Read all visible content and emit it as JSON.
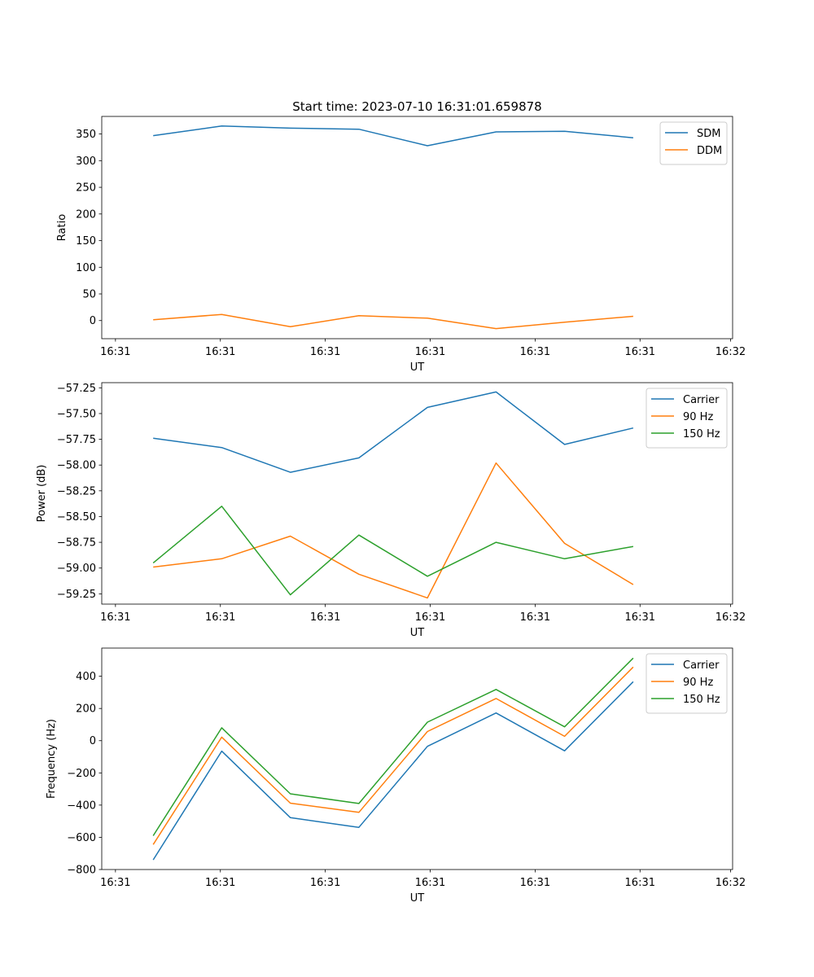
{
  "figure": {
    "title": "Start time: 2023-07-10 16:31:01.659878"
  },
  "chart_data": [
    {
      "type": "line",
      "title": "Start time: 2023-07-10 16:31:01.659878",
      "xlabel": "UT",
      "ylabel": "Ratio",
      "x": [
        1,
        2,
        3,
        4,
        5,
        6,
        7,
        8
      ],
      "xlim": [
        0.25,
        9.45
      ],
      "x_ticks": [
        0.45,
        1.98,
        3.51,
        5.04,
        6.57,
        8.1,
        9.42
      ],
      "x_tick_labels": [
        "16:31",
        "16:31",
        "16:31",
        "16:31",
        "16:31",
        "16:31",
        "16:32"
      ],
      "ylim": [
        -34,
        383
      ],
      "y_ticks": [
        0,
        50,
        100,
        150,
        200,
        250,
        300,
        350
      ],
      "y_tick_labels": [
        "0",
        "50",
        "100",
        "150",
        "200",
        "250",
        "300",
        "350"
      ],
      "legend": "top-right",
      "series": [
        {
          "name": "SDM",
          "color": "#1f77b4",
          "values": [
            347,
            365,
            361,
            359,
            328,
            354,
            355,
            343
          ]
        },
        {
          "name": "DDM",
          "color": "#ff7f0e",
          "values": [
            1.5,
            11.5,
            -11.5,
            9,
            4.5,
            -15,
            -3,
            8
          ]
        }
      ]
    },
    {
      "type": "line",
      "xlabel": "UT",
      "ylabel": "Power (dB)",
      "x": [
        1,
        2,
        3,
        4,
        5,
        6,
        7,
        8
      ],
      "xlim": [
        0.25,
        9.45
      ],
      "x_ticks": [
        0.45,
        1.98,
        3.51,
        5.04,
        6.57,
        8.1,
        9.42
      ],
      "x_tick_labels": [
        "16:31",
        "16:31",
        "16:31",
        "16:31",
        "16:31",
        "16:31",
        "16:32"
      ],
      "ylim": [
        -59.35,
        -57.2
      ],
      "y_ticks": [
        -59.25,
        -59.0,
        -58.75,
        -58.5,
        -58.25,
        -58.0,
        -57.75,
        -57.5,
        -57.25
      ],
      "y_tick_labels": [
        "−59.25",
        "−59.00",
        "−58.75",
        "−58.50",
        "−58.25",
        "−58.00",
        "−57.75",
        "−57.50",
        "−57.25"
      ],
      "legend": "top-right",
      "series": [
        {
          "name": "Carrier",
          "color": "#1f77b4",
          "values": [
            -57.74,
            -57.83,
            -58.07,
            -57.93,
            -57.44,
            -57.29,
            -57.8,
            -57.64
          ]
        },
        {
          "name": "90 Hz",
          "color": "#ff7f0e",
          "values": [
            -58.99,
            -58.91,
            -58.69,
            -59.06,
            -59.29,
            -57.98,
            -58.76,
            -59.16
          ]
        },
        {
          "name": "150 Hz",
          "color": "#2ca02c",
          "values": [
            -58.95,
            -58.4,
            -59.26,
            -58.68,
            -59.08,
            -58.75,
            -58.91,
            -58.79
          ]
        }
      ]
    },
    {
      "type": "line",
      "xlabel": "UT",
      "ylabel": "Frequency (Hz)",
      "x": [
        1,
        2,
        3,
        4,
        5,
        6,
        7,
        8
      ],
      "xlim": [
        0.25,
        9.45
      ],
      "x_ticks": [
        0.45,
        1.98,
        3.51,
        5.04,
        6.57,
        8.1,
        9.42
      ],
      "x_tick_labels": [
        "16:31",
        "16:31",
        "16:31",
        "16:31",
        "16:31",
        "16:31",
        "16:32"
      ],
      "ylim": [
        -800,
        575
      ],
      "y_ticks": [
        -800,
        -600,
        -400,
        -200,
        0,
        200,
        400
      ],
      "y_tick_labels": [
        "−800",
        "−600",
        "−400",
        "−200",
        "0",
        "200",
        "400"
      ],
      "legend": "top-right",
      "series": [
        {
          "name": "Carrier",
          "color": "#1f77b4",
          "values": [
            -740,
            -65,
            -478,
            -538,
            -35,
            172,
            -63,
            366
          ]
        },
        {
          "name": "90 Hz",
          "color": "#ff7f0e",
          "values": [
            -645,
            22,
            -388,
            -445,
            57,
            262,
            27,
            457
          ]
        },
        {
          "name": "150 Hz",
          "color": "#2ca02c",
          "values": [
            -590,
            80,
            -330,
            -390,
            115,
            318,
            86,
            513
          ]
        }
      ]
    }
  ]
}
